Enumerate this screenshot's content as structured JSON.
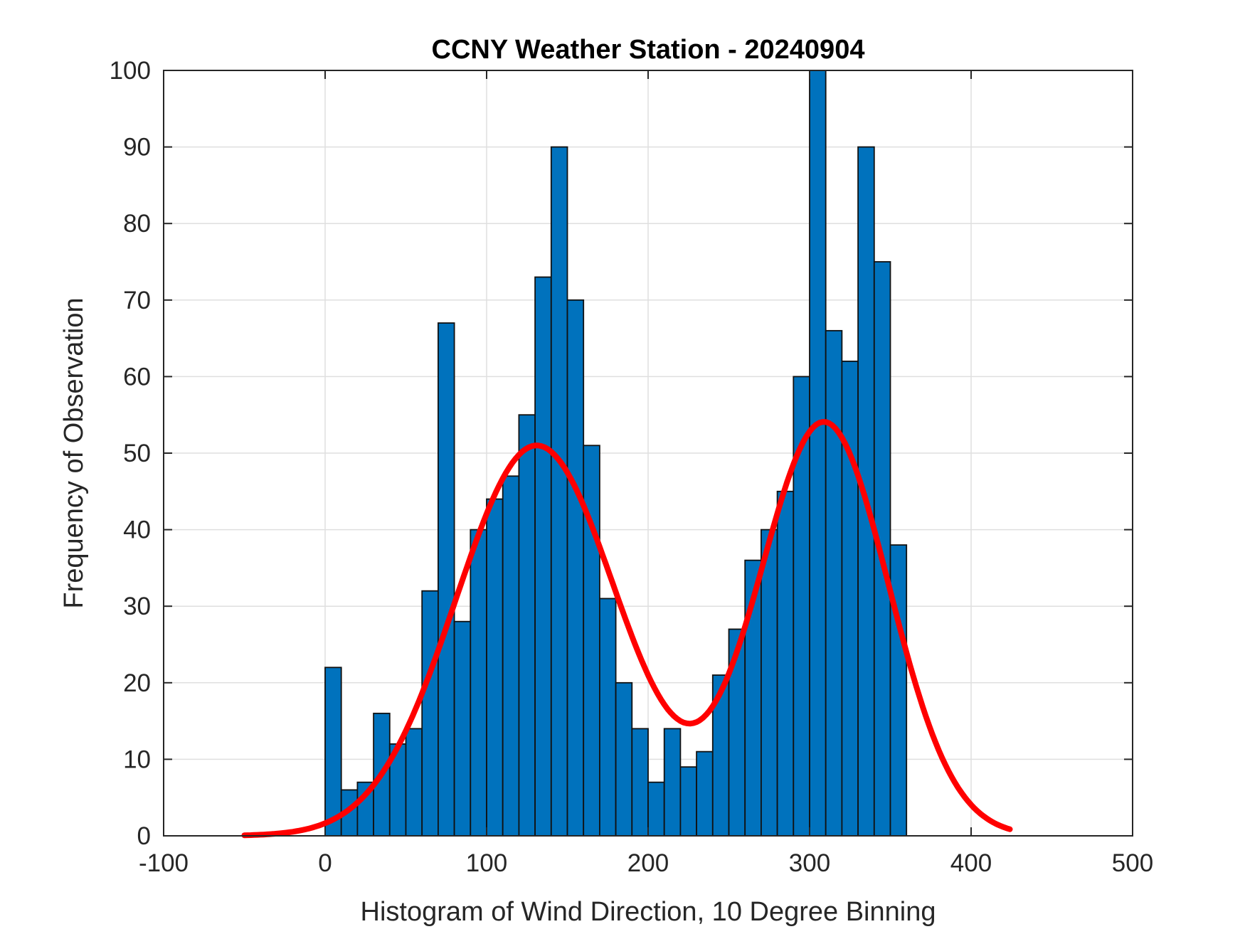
{
  "chart_data": {
    "type": "bar",
    "title": "CCNY Weather Station - 20240904",
    "xlabel": "Histogram of Wind Direction, 10 Degree Binning",
    "ylabel": "Frequency of Observation",
    "xlim": [
      -100,
      500
    ],
    "ylim": [
      0,
      100
    ],
    "xticks": [
      "-100",
      "0",
      "100",
      "200",
      "300",
      "400",
      "500"
    ],
    "yticks": [
      "0",
      "10",
      "20",
      "30",
      "40",
      "50",
      "60",
      "70",
      "80",
      "90",
      "100"
    ],
    "grid": true,
    "bin_width": 10,
    "bin_edges_start": 0,
    "values": [
      22,
      6,
      7,
      16,
      12,
      14,
      32,
      67,
      28,
      40,
      44,
      47,
      55,
      73,
      90,
      70,
      51,
      31,
      20,
      14,
      7,
      14,
      9,
      11,
      21,
      27,
      36,
      40,
      45,
      60,
      100,
      66,
      62,
      90,
      75,
      38
    ],
    "fit_curve": {
      "name": "two-component normal mixture fit",
      "x_range": [
        -50,
        425
      ],
      "components": [
        {
          "mean": 131,
          "sigma": 50,
          "peak": 51
        },
        {
          "mean": 309,
          "sigma": 40,
          "peak": 54
        }
      ]
    },
    "colors": {
      "bar": "#0072bd",
      "fit": "#ff0000"
    }
  }
}
